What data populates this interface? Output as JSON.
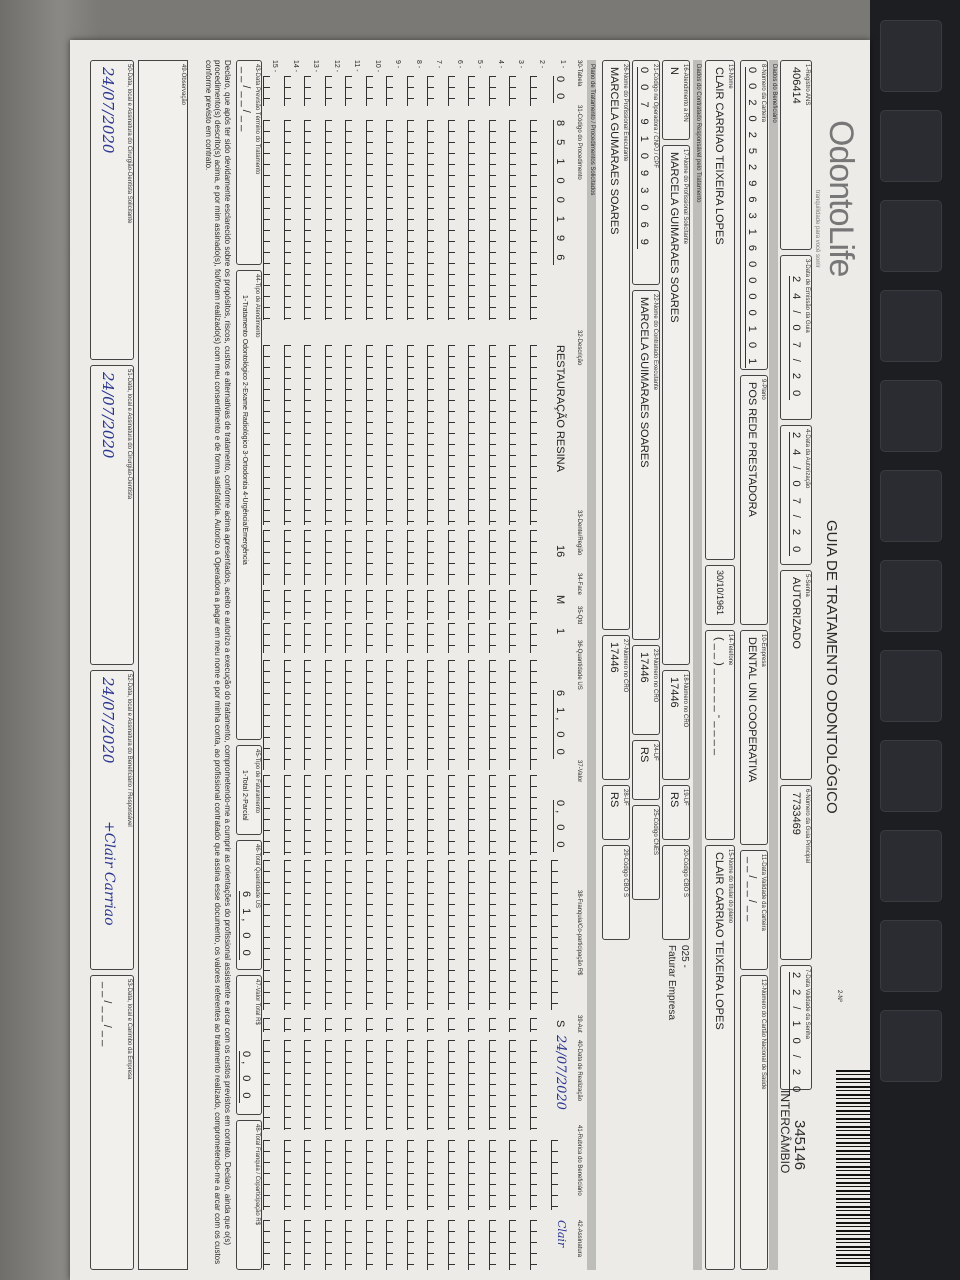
{
  "header": {
    "logo": "OdontoLife",
    "logo_tagline": "tranquilidade para você sorrir",
    "title": "GUIA DE TRATAMENTO ODONTOLÓGICO",
    "guide_number_label": "2-Nº",
    "guide_number": "345146",
    "guide_type": "INTERCÂMBIO"
  },
  "row1": {
    "registro_ans": {
      "label": "1-Registro ANS",
      "value": "406414"
    },
    "data_emissao": {
      "label": "3-Data de Emissão da Guia",
      "value": "2 4 / 0 7 / 2 0"
    },
    "data_autorizacao": {
      "label": "4-Data da Autorização",
      "value": "2 4 / 0 7 / 2 0"
    },
    "senha": {
      "label": "5-Senha",
      "value": "AUTORIZADO"
    },
    "guia_principal": {
      "label": "6-Número da Guia Principal",
      "value": "7733469"
    },
    "validade_senha": {
      "label": "7-Data Validade da Senha",
      "value": "2 2 / 1 0 / 2 0"
    }
  },
  "section_beneficiario": "Dados do Beneficiário",
  "row2": {
    "carteira": {
      "label": "8-Número da Carteira",
      "value": "0 0 2 0 2 5 2 9 6 3 1 6 0 0 0 0 1 0 1"
    },
    "plano": {
      "label": "9-Plano",
      "value": "POS REDE PRESTADORA"
    },
    "empresa": {
      "label": "10-Empresa",
      "value": "DENTAL UNI COOPERATIVA"
    },
    "validade_carteira": {
      "label": "11-Data Validade da Carteira",
      "value": "_ _ / _ _ / _ _"
    },
    "cns": {
      "label": "12-Número do Cartão Nacional de Saúde",
      "value": ""
    }
  },
  "row3": {
    "nome": {
      "label": "13-Nome",
      "value": "CLAIR CARRIAO TEIXEIRA LOPES"
    },
    "nascimento": {
      "value": "30/10/1961"
    },
    "telefone": {
      "label": "14-Telefone",
      "value": "( _ _ ) _ _ _ _ _ - _ _ _ _"
    },
    "titular": {
      "label": "15-Nome do titular do plano",
      "value": "CLAIR CARRIAO TEIXEIRA LOPES"
    }
  },
  "section_contratado": "Dados do Contratado Responsável pelo Tratamento",
  "row4": {
    "rn": {
      "label": "16-Atendimento a RN",
      "value": "N"
    },
    "solicitante": {
      "label": "17-Nome do Profissional Solicitante",
      "value": "MARCELA GUIMARAES SOARES"
    },
    "cro": {
      "label": "18-Número no CRO",
      "value": "17446"
    },
    "uf": {
      "label": "19-UF",
      "value": "RS"
    },
    "cbo": {
      "label": "20-Código CBO S",
      "value": ""
    },
    "note": "025 -",
    "note2": "Faturar Empresa"
  },
  "row5": {
    "codigo": {
      "label": "21-Código na Operadora / CNPJ / CPF",
      "value": "0 0 7 9 1 0 9 3 0 6 9"
    },
    "executante": {
      "label": "22-Nome do Contratado Executante",
      "value": "MARCELA GUIMARAES SOARES"
    },
    "cro": {
      "label": "23-Número no CRO",
      "value": "17446"
    },
    "uf": {
      "label": "24-UF",
      "value": "RS"
    },
    "cnes": {
      "label": "25-Código CNES",
      "value": ""
    }
  },
  "row6": {
    "prof_executante": {
      "label": "26-Nome do Profissional Executante",
      "value": "MARCELA GUMARAES SOARES"
    },
    "cro": {
      "label": "27-Número no CRO",
      "value": "17446"
    },
    "uf": {
      "label": "28-UF",
      "value": "RS"
    },
    "cbo": {
      "label": "29-Código CBO S",
      "value": ""
    }
  },
  "section_plano": "Plano de Tratamento / Procedimentos Solicitados",
  "table": {
    "headers": [
      "30-Tabela",
      "31-Código do Procedimento",
      "32-Descrição",
      "33-Dente/Região",
      "34-Face",
      "35-Qtd",
      "36-Quantidade US",
      "37-Valor",
      "38-Franquia/Co-participação R$",
      "39-Aut",
      "40-Data de Realização",
      "41-Rubrica do Beneficiário",
      "42-Assinatura"
    ],
    "row1": {
      "num": "1 -",
      "tabela": "0 0",
      "codigo": "8 5 1 0 0 1 9 6",
      "descricao": "RESTAURAÇÃO RESINA",
      "dente": "16",
      "face": "M",
      "qtd": "1",
      "quantidade_us": "6 1, 0 0",
      "valor": "0, 0 0",
      "aut": "S",
      "data_realizacao": "24/07/2020",
      "rubrica": "Clair"
    },
    "empty_rows": [
      "2 -",
      "3 -",
      "4 -",
      "5 -",
      "6 -",
      "7 -",
      "8 -",
      "9 -",
      "10 -",
      "11 -",
      "12 -",
      "13 -",
      "14 -",
      "15 -"
    ]
  },
  "footer": {
    "previsao": {
      "label": "43-Data Previsão Término do Tratamento",
      "value": "_ _ / _ _ / _ _"
    },
    "tipo_atendimento": {
      "label": "44-Tipo de Atendimento",
      "options": "1-Tratamento Odontológico  2-Exame Radiológico  3-Ortodontia  4-Urgência/Emergência"
    },
    "tipo_faturamento": {
      "label": "45-Tipo de Faturamento",
      "options": "1-Total  2-Parcial"
    },
    "total_us": {
      "label": "46-Total Quantidade US",
      "value": "6 1, 0 0"
    },
    "valor_total": {
      "label": "47-Valor Total R$",
      "value": "0, 0 0"
    },
    "total_franquia": {
      "label": "48-Total Franquia / Coparticipação R$",
      "value": ""
    },
    "declaration": "Declaro, que após ter sido devidamente esclarecido sobre os propósitos, riscos, custos e alternativas de tratamento, conforme acima apresentados, aceito e autorizo a execução do tratamento, comprometendo-me a cumprir as orientações do profissional assistente e arcar com os custos previstos em contrato. Declaro, ainda que o(s) procedimento(s) descrito(s) acima, e por mim assinado(s), foi/foram realizado(s) com meu consentimento e de forma satisfatória. Autorizo a Operadora a pagar em meu nome e por minha conta, ao profissional contratado que assina esse documento, os valores referentes ao tratamento realizado, comprometendo-me a arcar com os custos conforme previsto em contrato.",
    "observacao": {
      "label": "49-Observação",
      "value": ""
    },
    "sig50": {
      "label": "50-Data, local e Assinatura do Cirurgião-Dentista Solicitante",
      "value": "24/07/2020"
    },
    "sig51": {
      "label": "51-Data, local e Assinatura do Cirurgião-Dentista",
      "value": "24/07/2020"
    },
    "sig52": {
      "label": "52-Data, local e Assinatura do Beneficiário / Responsável",
      "value": "24/07/2020",
      "extra": "+Clair Carriao"
    },
    "sig53": {
      "label": "53-Data, local e Carimbo da Empresa",
      "value": "_ _ / _ _ / _ _"
    }
  },
  "colors": {
    "ink": "#2a2a2a",
    "paper": "#ecebe7",
    "band": "#bdbdb9",
    "handwriting": "#2a3690"
  }
}
